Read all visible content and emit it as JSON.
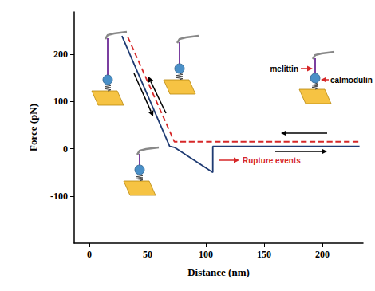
{
  "chart_data": {
    "type": "line",
    "xlabel": "Distance (nm)",
    "ylabel": "Force (pN)",
    "xlim": [
      -13,
      235
    ],
    "ylim": [
      -200,
      290
    ],
    "xticks": [
      0,
      50,
      100,
      150,
      200
    ],
    "yticks": [
      -100,
      0,
      100,
      200
    ],
    "grid": false,
    "series": [
      {
        "color": "#d62728",
        "line_style": "dashed",
        "x": [
          33,
          73,
          232
        ],
        "values": [
          237,
          15,
          15
        ]
      },
      {
        "color": "#1f3b73",
        "line_style": "solid",
        "x": [
          28,
          69,
          73,
          106,
          106,
          232
        ],
        "values": [
          239,
          5,
          3,
          -50,
          5,
          5
        ]
      }
    ],
    "annotations": [
      {
        "text": "melittin",
        "color": "#000000"
      },
      {
        "text": "calmodulin",
        "color": "#000000"
      },
      {
        "text": "Rupture events",
        "color": "#d62728"
      }
    ]
  }
}
